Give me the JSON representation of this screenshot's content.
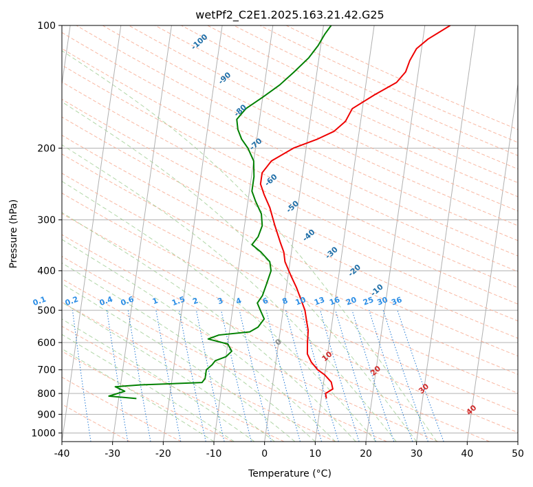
{
  "chart_data": {
    "type": "line",
    "title": "wetPf2_C2E1.2025.163.21.42.G25",
    "xlabel": "Temperature (°C)",
    "ylabel": "Pressure (hPa)",
    "xlim": [
      -40,
      50
    ],
    "ylim": [
      1050,
      100
    ],
    "y_scale": "log",
    "grid": true,
    "x_ticks": [
      -40,
      -30,
      -20,
      -10,
      0,
      10,
      20,
      30,
      40,
      50
    ],
    "y_ticks": [
      100,
      200,
      300,
      400,
      500,
      600,
      700,
      800,
      900,
      1000
    ],
    "series": [
      {
        "color": "#ee0000",
        "points": [
          [
            11,
            823
          ],
          [
            10.7,
            800
          ],
          [
            12,
            780
          ],
          [
            11.5,
            750
          ],
          [
            10,
            720
          ],
          [
            8.5,
            700
          ],
          [
            7,
            670
          ],
          [
            6,
            640
          ],
          [
            5.7,
            600
          ],
          [
            5.5,
            560
          ],
          [
            5,
            535
          ],
          [
            4.3,
            500
          ],
          [
            3.2,
            470
          ],
          [
            2,
            440
          ],
          [
            0.5,
            410
          ],
          [
            -1,
            380
          ],
          [
            -1.5,
            360
          ],
          [
            -2.5,
            340
          ],
          [
            -4,
            310
          ],
          [
            -5.5,
            280
          ],
          [
            -7,
            260
          ],
          [
            -8,
            245
          ],
          [
            -8,
            230
          ],
          [
            -6.5,
            215
          ],
          [
            -2.5,
            200
          ],
          [
            2,
            190
          ],
          [
            5,
            182
          ],
          [
            7,
            172
          ],
          [
            8,
            160
          ],
          [
            12,
            148
          ],
          [
            16,
            138
          ],
          [
            17.5,
            130
          ],
          [
            18,
            122
          ],
          [
            19,
            114
          ],
          [
            21,
            108
          ],
          [
            25,
            100
          ]
        ]
      },
      {
        "color": "#008000",
        "points": [
          [
            -26.5,
            823
          ],
          [
            -32,
            812
          ],
          [
            -29,
            790
          ],
          [
            -31,
            770
          ],
          [
            -26,
            762
          ],
          [
            -20,
            757
          ],
          [
            -14,
            752
          ],
          [
            -13.5,
            735
          ],
          [
            -13.5,
            700
          ],
          [
            -12.5,
            680
          ],
          [
            -12,
            665
          ],
          [
            -10,
            650
          ],
          [
            -9,
            630
          ],
          [
            -10,
            605
          ],
          [
            -14,
            588
          ],
          [
            -12,
            575
          ],
          [
            -6,
            565
          ],
          [
            -4.5,
            550
          ],
          [
            -3.5,
            525
          ],
          [
            -4.5,
            500
          ],
          [
            -5.3,
            480
          ],
          [
            -4.5,
            460
          ],
          [
            -4,
            430
          ],
          [
            -3.5,
            400
          ],
          [
            -4,
            380
          ],
          [
            -6,
            360
          ],
          [
            -8,
            345
          ],
          [
            -7,
            330
          ],
          [
            -6.5,
            310
          ],
          [
            -7,
            290
          ],
          [
            -8.5,
            270
          ],
          [
            -9.5,
            255
          ],
          [
            -9.5,
            235
          ],
          [
            -10,
            215
          ],
          [
            -11.5,
            200
          ],
          [
            -13,
            190
          ],
          [
            -14,
            180
          ],
          [
            -14.5,
            170
          ],
          [
            -13,
            160
          ],
          [
            -10,
            150
          ],
          [
            -7,
            140
          ],
          [
            -4.5,
            130
          ],
          [
            -2,
            120
          ],
          [
            -0.5,
            112
          ],
          [
            0.5,
            105
          ],
          [
            1.5,
            100
          ]
        ]
      }
    ],
    "labels": {
      "dry_adiabats": [
        "-100",
        "-90",
        "-80",
        "-70",
        "-60",
        "-50",
        "-40",
        "-30",
        "-20",
        "-10",
        "0",
        "10",
        "20",
        "30",
        "40"
      ],
      "mixing_ratios": [
        "0.1",
        "0.2",
        "0.4",
        "0.6",
        "1",
        "1.5",
        "2",
        "3",
        "4",
        "6",
        "8",
        "10",
        "13",
        "16",
        "20",
        "25",
        "30",
        "36"
      ]
    }
  }
}
